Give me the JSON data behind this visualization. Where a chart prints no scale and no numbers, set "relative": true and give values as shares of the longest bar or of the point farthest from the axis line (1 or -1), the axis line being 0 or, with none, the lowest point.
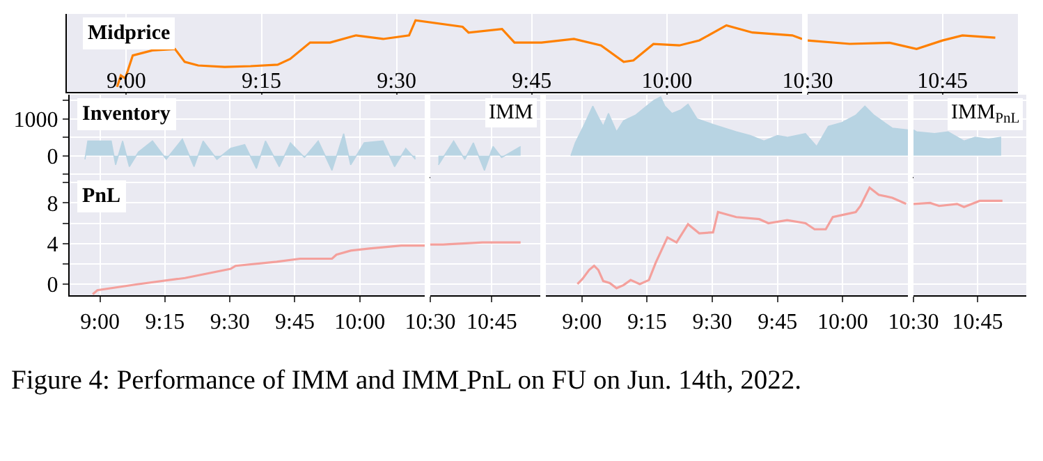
{
  "chart_data": [
    {
      "type": "line",
      "title": "Midprice",
      "relative": true,
      "tick_labels": "x",
      "grid": "x",
      "legend": false,
      "xlim": [
        8.89,
        10.25
      ],
      "xticks": [
        {
          "value": 9,
          "label": "9:00"
        },
        {
          "value": 9.25,
          "label": "9:15"
        },
        {
          "value": 9.5,
          "label": "9:30"
        },
        {
          "value": 9.75,
          "label": "9:45"
        },
        {
          "value": 10,
          "label": "10:00"
        }
      ],
      "x": [
        8.983,
        8.99,
        8.998,
        9.012,
        9.048,
        9.09,
        9.108,
        9.133,
        9.182,
        9.23,
        9.28,
        9.303,
        9.34,
        9.377,
        9.425,
        9.475,
        9.523,
        9.535,
        9.622,
        9.633,
        9.695,
        9.718,
        9.768,
        9.828,
        9.878,
        9.92,
        9.938,
        9.975,
        10.023,
        10.06,
        10.11,
        10.158,
        10.232,
        10.25
      ],
      "series": [
        {
          "color": "#ff8000",
          "values": [
            0.07,
            0.23,
            0.19,
            0.51,
            0.58,
            0.6,
            0.42,
            0.37,
            0.35,
            0.36,
            0.38,
            0.46,
            0.69,
            0.69,
            0.79,
            0.74,
            0.79,
            1.0,
            0.91,
            0.83,
            0.88,
            0.69,
            0.69,
            0.74,
            0.65,
            0.42,
            0.44,
            0.67,
            0.65,
            0.72,
            0.93,
            0.83,
            0.79,
            0.74
          ]
        }
      ],
      "annotations": [
        "Figure 4: Performance of IMM and IMM$_{-}$PnL on FU on Jun. 14th, 2022."
      ]
    },
    {
      "type": "line",
      "relative": true,
      "tick_labels": "x",
      "grid": "x",
      "legend": false,
      "xlim": [
        10.5,
        10.89
      ],
      "xticks": [
        {
          "value": 10.5,
          "label": "10:30"
        },
        {
          "value": 10.75,
          "label": "10:45"
        }
      ],
      "x": [
        10.5,
        10.578,
        10.652,
        10.702,
        10.75,
        10.787,
        10.848
      ],
      "series": [
        {
          "color": "#ff8000",
          "values": [
            0.91,
            0.85,
            0.87,
            0.76,
            0.91,
            1.0,
            0.96
          ]
        }
      ]
    },
    {
      "type": "area",
      "title": "Inventory",
      "tick_labels": "y",
      "grid": true,
      "legend": false,
      "xlim": [
        8.883,
        10.25
      ],
      "ylim": [
        -540,
        1660
      ],
      "xticks": [
        {
          "value": 9,
          "label": null
        },
        {
          "value": 9.25,
          "label": null
        },
        {
          "value": 9.5,
          "label": null
        },
        {
          "value": 9.75,
          "label": null
        },
        {
          "value": 10,
          "label": null
        }
      ],
      "yticks": [
        {
          "value": -500,
          "label": null
        },
        0,
        {
          "value": 500,
          "label": null
        },
        1000,
        {
          "value": 1500,
          "label": null
        }
      ],
      "x": [
        8.942,
        8.953,
        9.043,
        9.06,
        9.087,
        9.113,
        9.148,
        9.202,
        9.255,
        9.317,
        9.362,
        9.397,
        9.45,
        9.503,
        9.557,
        9.602,
        9.637,
        9.69,
        9.733,
        9.787,
        9.84,
        9.893,
        9.938,
        9.965,
        10.017,
        10.089,
        10.134,
        10.177,
        10.214
      ],
      "series": [
        {
          "color": "#b8d4e3",
          "values": [
            -100,
            400,
            400,
            -250,
            400,
            -300,
            100,
            400,
            -100,
            450,
            -300,
            400,
            -100,
            200,
            300,
            -350,
            400,
            -300,
            350,
            -50,
            400,
            -400,
            600,
            -250,
            350,
            400,
            -300,
            200,
            -100
          ]
        }
      ]
    },
    {
      "type": "area",
      "tick_labels": false,
      "grid": true,
      "legend": false,
      "xlim": [
        10.5,
        10.947
      ],
      "ylim": [
        -540,
        1660
      ],
      "xticks": [
        {
          "value": 10.5,
          "label": null
        },
        {
          "value": 10.75,
          "label": null
        }
      ],
      "yticks": [
        {
          "value": -500,
          "label": null
        },
        {
          "value": 0,
          "label": null
        },
        {
          "value": 500,
          "label": null
        },
        {
          "value": 1000,
          "label": null
        },
        {
          "value": 1500,
          "label": null
        }
      ],
      "x": [
        10.533,
        10.595,
        10.64,
        10.675,
        10.72,
        10.755,
        10.79,
        10.867
      ],
      "series": [
        {
          "name": "IMM",
          "color": "#b8d4e3",
          "values": [
            -250,
            400,
            -100,
            350,
            -400,
            250,
            -50,
            250
          ]
        }
      ]
    },
    {
      "type": "area",
      "tick_labels": false,
      "grid": true,
      "legend": false,
      "xlim": [
        8.862,
        10.25
      ],
      "ylim": [
        -540,
        1660
      ],
      "xticks": [
        {
          "value": 9,
          "label": null
        },
        {
          "value": 9.25,
          "label": null
        },
        {
          "value": 9.5,
          "label": null
        },
        {
          "value": 9.75,
          "label": null
        },
        {
          "value": 10,
          "label": null
        }
      ],
      "yticks": [
        {
          "value": -500,
          "label": null
        },
        {
          "value": 0,
          "label": null
        },
        {
          "value": 500,
          "label": null
        },
        {
          "value": 1000,
          "label": null
        },
        {
          "value": 1500,
          "label": null
        }
      ],
      "x": [
        8.958,
        8.975,
        9.01,
        9.042,
        9.063,
        9.082,
        9.102,
        9.133,
        9.16,
        9.205,
        9.24,
        9.275,
        9.302,
        9.318,
        9.345,
        9.38,
        9.407,
        9.442,
        9.503,
        9.592,
        9.645,
        9.698,
        9.75,
        9.787,
        9.857,
        9.9,
        9.945,
        9.997,
        10.05,
        10.085,
        10.12,
        10.19,
        10.25
      ],
      "series": [
        {
          "color": "#b8d4e3",
          "values": [
            0,
            350,
            850,
            1350,
            1050,
            800,
            1150,
            650,
            950,
            1100,
            1300,
            1500,
            1600,
            1350,
            1150,
            1250,
            1400,
            1000,
            850,
            650,
            550,
            400,
            550,
            500,
            600,
            250,
            800,
            900,
            1100,
            1350,
            1100,
            750,
            700
          ]
        }
      ]
    },
    {
      "type": "area",
      "tick_labels": false,
      "grid": true,
      "legend": false,
      "xlim": [
        10.5,
        10.94
      ],
      "ylim": [
        -540,
        1660
      ],
      "xticks": [
        {
          "value": 10.5,
          "label": null
        },
        {
          "value": 10.75,
          "label": null
        }
      ],
      "yticks": [
        {
          "value": -500,
          "label": null
        },
        {
          "value": 0,
          "label": null
        },
        {
          "value": 500,
          "label": null
        },
        {
          "value": 1000,
          "label": null
        },
        {
          "value": 1500,
          "label": null
        }
      ],
      "x": [
        10.5,
        10.512,
        10.582,
        10.635,
        10.697,
        10.74,
        10.793,
        10.842
      ],
      "series": [
        {
          "name": "IMM$_{PnL}$",
          "color": "#b8d4e3",
          "values": [
            700,
            650,
            600,
            650,
            400,
            500,
            450,
            500
          ]
        }
      ]
    },
    {
      "type": "line",
      "title": "PnL",
      "grid": true,
      "legend": false,
      "xlim": [
        8.883,
        10.25
      ],
      "ylim": [
        -1.1,
        10.7
      ],
      "xticks": [
        {
          "value": 9,
          "label": "9:00"
        },
        {
          "value": 9.25,
          "label": "9:15"
        },
        {
          "value": 9.5,
          "label": "9:30"
        },
        {
          "value": 9.75,
          "label": "9:45"
        },
        {
          "value": 10,
          "label": "10:00"
        }
      ],
      "yticks": [
        0,
        {
          "value": 2,
          "label": null
        },
        4,
        {
          "value": 6,
          "label": null
        },
        8,
        {
          "value": 10,
          "label": null
        }
      ],
      "x": [
        8.972,
        8.99,
        9.148,
        9.327,
        9.503,
        9.522,
        9.68,
        9.77,
        9.893,
        9.91,
        9.965,
        10.037,
        10.16,
        10.25
      ],
      "series": [
        {
          "color": "#f4a09c",
          "values": [
            -1.0,
            -0.6,
            0,
            0.6,
            1.5,
            1.8,
            2.2,
            2.5,
            2.5,
            2.9,
            3.3,
            3.5,
            3.8,
            3.8
          ]
        }
      ]
    },
    {
      "type": "line",
      "tick_labels": "x",
      "grid": true,
      "legend": false,
      "xlim": [
        10.5,
        10.947
      ],
      "ylim": [
        -1.1,
        10.7
      ],
      "xticks": [
        {
          "value": 10.5,
          "label": "10:30"
        },
        {
          "value": 10.75,
          "label": "10:45"
        }
      ],
      "yticks": [
        {
          "value": 0,
          "label": null
        },
        {
          "value": 2,
          "label": null
        },
        {
          "value": 4,
          "label": null
        },
        {
          "value": 6,
          "label": null
        },
        {
          "value": 8,
          "label": null
        },
        {
          "value": 10,
          "label": null
        }
      ],
      "x": [
        10.5,
        10.552,
        10.712,
        10.867
      ],
      "series": [
        {
          "color": "#f4a09c",
          "values": [
            3.9,
            3.9,
            4.1,
            4.1
          ]
        }
      ]
    },
    {
      "type": "line",
      "tick_labels": "x",
      "grid": true,
      "legend": false,
      "xlim": [
        8.862,
        10.25
      ],
      "ylim": [
        -1.1,
        10.7
      ],
      "xticks": [
        {
          "value": 9,
          "label": "9:00"
        },
        {
          "value": 9.25,
          "label": "9:15"
        },
        {
          "value": 9.5,
          "label": "9:30"
        },
        {
          "value": 9.75,
          "label": "9:45"
        },
        {
          "value": 10,
          "label": "10:00"
        }
      ],
      "yticks": [
        {
          "value": 0,
          "label": null
        },
        {
          "value": 2,
          "label": null
        },
        {
          "value": 4,
          "label": null
        },
        {
          "value": 6,
          "label": null
        },
        {
          "value": 8,
          "label": null
        },
        {
          "value": 10,
          "label": null
        }
      ],
      "x": [
        8.983,
        9.002,
        9.028,
        9.047,
        9.063,
        9.082,
        9.107,
        9.133,
        9.16,
        9.187,
        9.222,
        9.257,
        9.283,
        9.328,
        9.363,
        9.407,
        9.45,
        9.503,
        9.522,
        9.592,
        9.68,
        9.715,
        9.787,
        9.857,
        9.892,
        9.935,
        9.962,
        10.015,
        10.05,
        10.068,
        10.103,
        10.138,
        10.19,
        10.243
      ],
      "series": [
        {
          "color": "#f4a09c",
          "values": [
            0,
            0.5,
            1.4,
            1.8,
            1.4,
            0.3,
            0.1,
            -0.4,
            -0.1,
            0.4,
            0,
            0.4,
            2.1,
            4.6,
            4.1,
            5.9,
            5.0,
            5.1,
            7.1,
            6.6,
            6.4,
            6.0,
            6.3,
            6.0,
            5.4,
            5.4,
            6.6,
            6.9,
            7.1,
            7.7,
            9.5,
            8.8,
            8.5,
            7.9
          ]
        }
      ]
    },
    {
      "type": "line",
      "tick_labels": "x",
      "grid": true,
      "legend": false,
      "xlim": [
        10.5,
        10.94
      ],
      "ylim": [
        -1.1,
        10.7
      ],
      "xticks": [
        {
          "value": 10.5,
          "label": "10:30"
        },
        {
          "value": 10.75,
          "label": "10:45"
        }
      ],
      "yticks": [
        {
          "value": 0,
          "label": null
        },
        {
          "value": 2,
          "label": null
        },
        {
          "value": 4,
          "label": null
        },
        {
          "value": 6,
          "label": null
        },
        {
          "value": 8,
          "label": null
        },
        {
          "value": 10,
          "label": null
        }
      ],
      "x": [
        10.5,
        10.565,
        10.6,
        10.67,
        10.697,
        10.758,
        10.81,
        10.847
      ],
      "series": [
        {
          "color": "#f4a09c",
          "values": [
            7.9,
            8.0,
            7.7,
            7.9,
            7.6,
            8.2,
            8.2,
            8.2
          ]
        }
      ]
    }
  ]
}
